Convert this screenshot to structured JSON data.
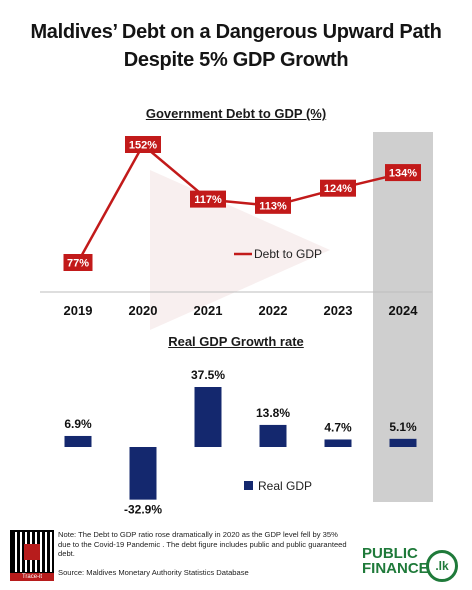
{
  "title_line1": "Maldives’ Debt on a Dangerous Upward Path",
  "title_line2": "Despite 5% GDP Growth",
  "chart_data": [
    {
      "type": "line",
      "title": "Government Debt to GDP (%)",
      "categories": [
        "2019",
        "2020",
        "2021",
        "2022",
        "2023",
        "2024"
      ],
      "series": [
        {
          "name": "Debt to GDP",
          "values": [
            77,
            152,
            117,
            113,
            124,
            134
          ]
        }
      ],
      "data_labels": [
        "77%",
        "152%",
        "117%",
        "113%",
        "124%",
        "134%"
      ],
      "legend": "center",
      "color": "#c21a1a",
      "highlight_category": "2024"
    },
    {
      "type": "bar",
      "title": "Real GDP Growth rate",
      "categories": [
        "2019",
        "2020",
        "2021",
        "2022",
        "2023",
        "2024"
      ],
      "series": [
        {
          "name": "Real GDP",
          "values": [
            6.9,
            -32.9,
            37.5,
            13.8,
            4.7,
            5.1
          ]
        }
      ],
      "data_labels": [
        "6.9%",
        "-32.9%",
        "37.5%",
        "13.8%",
        "4.7%",
        "5.1%"
      ],
      "legend": "center-right",
      "color": "#14286e",
      "highlight_category": "2024"
    }
  ],
  "footer": {
    "note": "Note: The Debt to GDP ratio rose dramatically in 2020 as the GDP level fell by 35% due to the Covid-19 Pandemic . The debt figure includes public and public guaranteed debt.",
    "source": "Source: Maldives Monetary Authority Statistics Database",
    "trace_label": "Trace-it",
    "logo_line1": "PUBLIC",
    "logo_line2": "FINANCE",
    "logo_badge": ".lk"
  },
  "colors": {
    "highlight_band": "#cfcfcf",
    "line": "#c21a1a",
    "bars": "#14286e"
  }
}
